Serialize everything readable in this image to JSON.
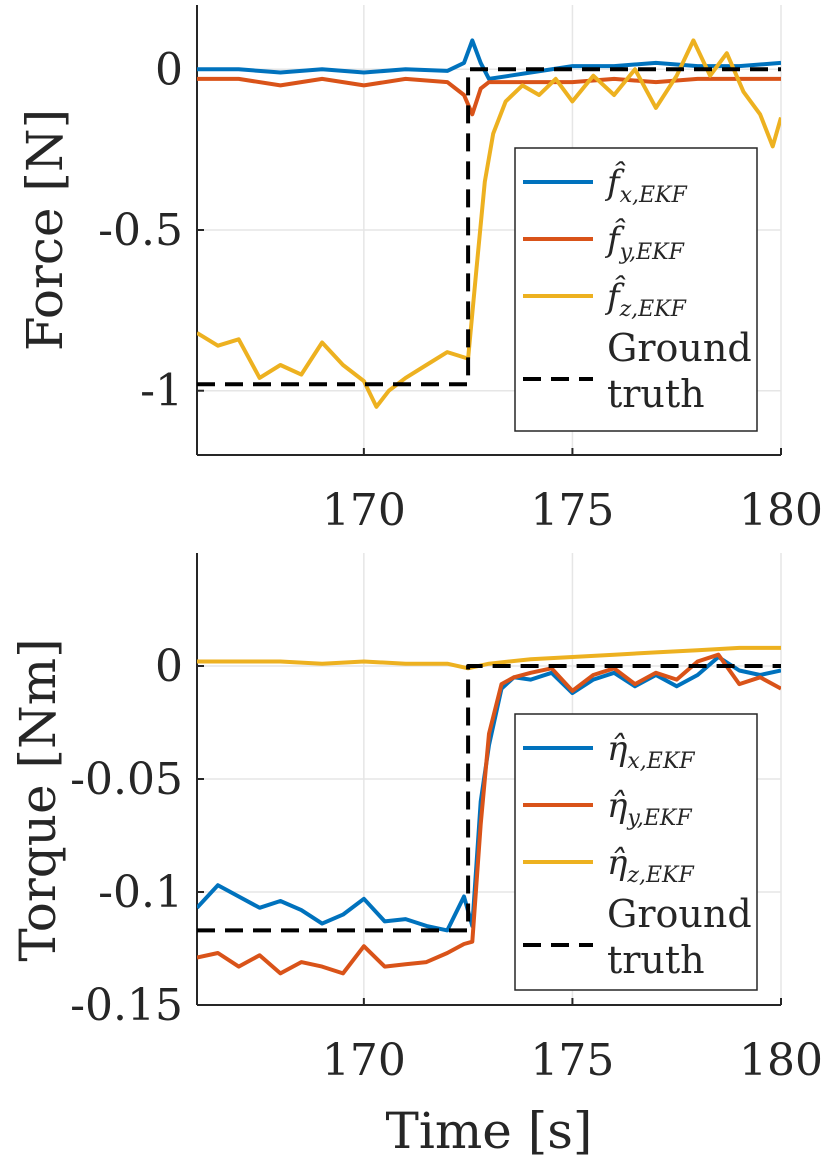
{
  "chart_data": [
    {
      "type": "line",
      "ylabel": "Force [N]",
      "xlabel": "",
      "xlim": [
        166,
        180
      ],
      "ylim": [
        -1.2,
        0.2
      ],
      "xticks": [
        170,
        175,
        180
      ],
      "yticks": [
        0,
        -0.5,
        -1
      ],
      "ytick_labels": [
        "0",
        "-0.5",
        "-1"
      ],
      "grid": true,
      "legend_position": "inside-right",
      "series": [
        {
          "name": "f_x_EKF",
          "symbol": "f̂",
          "subscript": "x,EKF",
          "color": "#0072BD",
          "x": [
            166,
            167,
            168,
            169,
            170,
            171,
            172,
            172.4,
            172.6,
            172.8,
            173,
            173.5,
            174,
            175,
            176,
            177,
            178,
            179,
            180
          ],
          "y": [
            0.0,
            0.0,
            -0.01,
            0.0,
            -0.01,
            0.0,
            -0.005,
            0.02,
            0.09,
            0.02,
            -0.03,
            -0.02,
            -0.01,
            0.01,
            0.01,
            0.02,
            0.01,
            0.01,
            0.02
          ]
        },
        {
          "name": "f_y_EKF",
          "symbol": "f̂",
          "subscript": "y,EKF",
          "color": "#D95319",
          "x": [
            166,
            167,
            168,
            169,
            170,
            171,
            172,
            172.4,
            172.6,
            172.8,
            173,
            173.5,
            174,
            175,
            176,
            177,
            178,
            179,
            180
          ],
          "y": [
            -0.03,
            -0.03,
            -0.05,
            -0.03,
            -0.05,
            -0.03,
            -0.04,
            -0.08,
            -0.14,
            -0.06,
            -0.04,
            -0.04,
            -0.04,
            -0.04,
            -0.03,
            -0.04,
            -0.03,
            -0.03,
            -0.03
          ]
        },
        {
          "name": "f_z_EKF",
          "symbol": "f̂",
          "subscript": "z,EKF",
          "color": "#EDB120",
          "x": [
            166,
            166.5,
            167,
            167.5,
            168,
            168.5,
            169,
            169.5,
            170,
            170.3,
            170.6,
            171,
            171.5,
            172,
            172.5,
            172.7,
            172.9,
            173.1,
            173.4,
            173.8,
            174.2,
            174.6,
            175,
            175.5,
            176,
            176.5,
            177,
            177.5,
            177.9,
            178.3,
            178.7,
            179.1,
            179.5,
            179.8,
            180
          ],
          "y": [
            -0.82,
            -0.86,
            -0.84,
            -0.96,
            -0.92,
            -0.95,
            -0.85,
            -0.92,
            -0.97,
            -1.05,
            -1.0,
            -0.96,
            -0.92,
            -0.88,
            -0.9,
            -0.62,
            -0.35,
            -0.2,
            -0.1,
            -0.05,
            -0.08,
            -0.03,
            -0.1,
            -0.02,
            -0.08,
            0.0,
            -0.12,
            -0.02,
            0.09,
            -0.02,
            0.05,
            -0.07,
            -0.14,
            -0.24,
            -0.15
          ]
        },
        {
          "name": "ground_truth",
          "label_lines": [
            "Ground",
            "truth"
          ],
          "color": "#000000",
          "dashed": true,
          "x": [
            166,
            172.5,
            172.5,
            180
          ],
          "y": [
            -0.98,
            -0.98,
            0.0,
            0.0
          ]
        }
      ]
    },
    {
      "type": "line",
      "ylabel": "Torque [Nm]",
      "xlabel": "Time [s]",
      "xlim": [
        166,
        180
      ],
      "ylim": [
        -0.15,
        0.05
      ],
      "xticks": [
        170,
        175,
        180
      ],
      "yticks": [
        0,
        -0.05,
        -0.1,
        -0.15
      ],
      "ytick_labels": [
        "0",
        "-0.05",
        "-0.1",
        "-0.15"
      ],
      "grid": true,
      "legend_position": "inside-right",
      "series": [
        {
          "name": "eta_x_EKF",
          "symbol": "η̂",
          "subscript": "x,EKF",
          "color": "#0072BD",
          "x": [
            166,
            166.5,
            167,
            167.5,
            168,
            168.5,
            169,
            169.5,
            170,
            170.5,
            171,
            171.5,
            172,
            172.4,
            172.6,
            172.8,
            173,
            173.3,
            173.6,
            174,
            174.5,
            175,
            175.5,
            176,
            176.5,
            177,
            177.5,
            178,
            178.5,
            179,
            179.5,
            180
          ],
          "y": [
            -0.107,
            -0.097,
            -0.102,
            -0.107,
            -0.104,
            -0.108,
            -0.114,
            -0.11,
            -0.103,
            -0.113,
            -0.112,
            -0.115,
            -0.117,
            -0.102,
            -0.115,
            -0.06,
            -0.035,
            -0.01,
            -0.005,
            -0.006,
            -0.003,
            -0.012,
            -0.006,
            -0.003,
            -0.009,
            -0.004,
            -0.009,
            -0.004,
            0.004,
            -0.002,
            -0.004,
            -0.002
          ]
        },
        {
          "name": "eta_y_EKF",
          "symbol": "η̂",
          "subscript": "y,EKF",
          "color": "#D95319",
          "x": [
            166,
            166.5,
            167,
            167.5,
            168,
            168.5,
            169,
            169.5,
            170,
            170.5,
            171,
            171.5,
            172,
            172.4,
            172.6,
            172.8,
            173,
            173.3,
            173.6,
            174,
            174.5,
            175,
            175.5,
            176,
            176.5,
            177,
            177.5,
            178,
            178.5,
            179,
            179.5,
            180
          ],
          "y": [
            -0.129,
            -0.127,
            -0.133,
            -0.128,
            -0.136,
            -0.131,
            -0.133,
            -0.136,
            -0.124,
            -0.133,
            -0.132,
            -0.131,
            -0.127,
            -0.123,
            -0.122,
            -0.07,
            -0.03,
            -0.008,
            -0.005,
            -0.003,
            -0.001,
            -0.011,
            -0.004,
            -0.001,
            -0.008,
            -0.003,
            -0.006,
            0.002,
            0.005,
            -0.008,
            -0.005,
            -0.01
          ]
        },
        {
          "name": "eta_z_EKF",
          "symbol": "η̂",
          "subscript": "z,EKF",
          "color": "#EDB120",
          "x": [
            166,
            167,
            168,
            169,
            170,
            171,
            172,
            172.5,
            173,
            174,
            175,
            176,
            177,
            178,
            179,
            180
          ],
          "y": [
            0.002,
            0.002,
            0.002,
            0.001,
            0.002,
            0.001,
            0.001,
            -0.001,
            0.001,
            0.003,
            0.004,
            0.005,
            0.006,
            0.007,
            0.008,
            0.008
          ]
        },
        {
          "name": "ground_truth",
          "label_lines": [
            "Ground",
            "truth"
          ],
          "color": "#000000",
          "dashed": true,
          "x": [
            166,
            172.5,
            172.5,
            180
          ],
          "y": [
            -0.117,
            -0.117,
            0.0,
            0.0
          ]
        }
      ]
    }
  ]
}
